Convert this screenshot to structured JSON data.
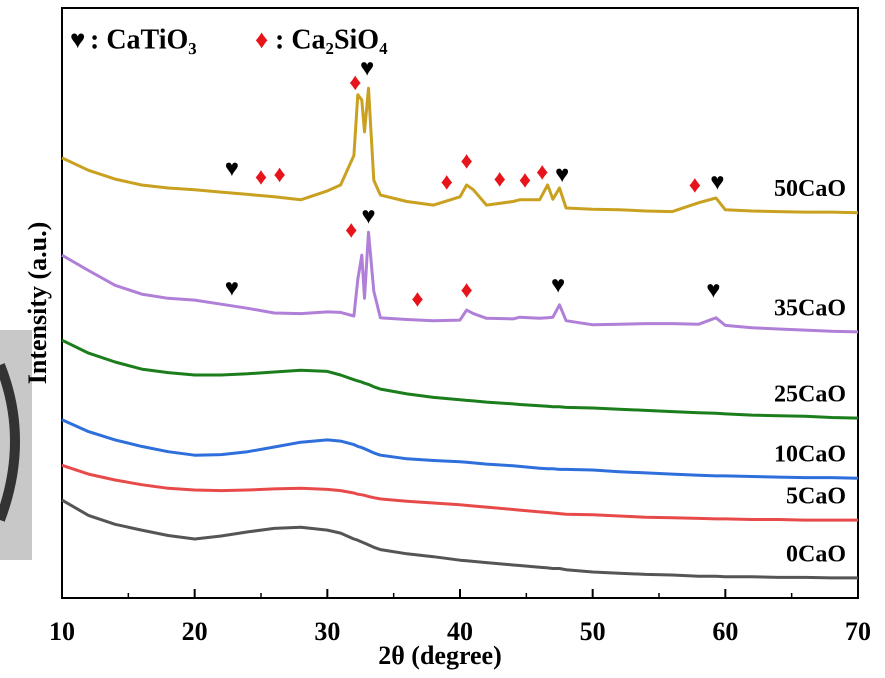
{
  "chart_data": {
    "type": "line",
    "xlabel": "2θ (degree)",
    "ylabel": "Intensity (a.u.)",
    "x": [
      10,
      12,
      14,
      16,
      18,
      20,
      22,
      24,
      26,
      28,
      30,
      31,
      32,
      32.3,
      32.6,
      32.8,
      33.1,
      33.5,
      34,
      36,
      38,
      40,
      40.5,
      41,
      42,
      44,
      44.5,
      46,
      46.6,
      47,
      47.5,
      48,
      50,
      52,
      54,
      56,
      58,
      59.3,
      60,
      62,
      64,
      66,
      68,
      70
    ],
    "xlim": [
      10,
      70
    ],
    "xticks": [
      10,
      20,
      30,
      40,
      50,
      60,
      70
    ],
    "ylim": [
      0,
      100
    ],
    "series": [
      {
        "name": "0CaO",
        "color": "#555555",
        "values": [
          16.6,
          14,
          12.5,
          11.5,
          10.6,
          10,
          10.5,
          11.2,
          11.8,
          12,
          11.5,
          11,
          10,
          9.8,
          9.5,
          9.3,
          9,
          8.6,
          8.2,
          7.5,
          7,
          6.4,
          6.3,
          6.2,
          6,
          5.6,
          5.5,
          5.2,
          5.1,
          5,
          5,
          4.8,
          4.4,
          4.2,
          4,
          3.9,
          3.7,
          3.7,
          3.6,
          3.6,
          3.5,
          3.5,
          3.4,
          3.4
        ]
      },
      {
        "name": "5CaO",
        "color": "#e84a4a",
        "values": [
          22.5,
          21,
          20,
          19.2,
          18.6,
          18.3,
          18.2,
          18.3,
          18.5,
          18.6,
          18.4,
          18.2,
          17.8,
          17.6,
          17.5,
          17.4,
          17.2,
          17,
          16.8,
          16.4,
          16.1,
          15.8,
          15.7,
          15.6,
          15.4,
          15,
          14.9,
          14.6,
          14.5,
          14.4,
          14.3,
          14.2,
          14.1,
          13.9,
          13.7,
          13.6,
          13.5,
          13.4,
          13.4,
          13.3,
          13.3,
          13.2,
          13.2,
          13.2
        ]
      },
      {
        "name": "10CaO",
        "color": "#2f6fdb",
        "values": [
          30.2,
          28.2,
          26.8,
          25.7,
          24.8,
          24.2,
          24.3,
          24.8,
          25.6,
          26.4,
          26.8,
          26.6,
          26,
          25.7,
          25.5,
          25.3,
          25,
          24.6,
          24.2,
          23.6,
          23.3,
          23.1,
          23,
          22.9,
          22.7,
          22.4,
          22.3,
          22,
          21.9,
          21.9,
          21.8,
          21.8,
          21.7,
          21.4,
          21.2,
          21,
          20.8,
          20.7,
          20.7,
          20.6,
          20.5,
          20.4,
          20.4,
          20.3
        ]
      },
      {
        "name": "25CaO",
        "color": "#1b7d1b",
        "values": [
          43.7,
          41.5,
          40,
          38.8,
          38.2,
          37.8,
          37.8,
          38,
          38.3,
          38.6,
          38.4,
          37.8,
          37,
          36.8,
          36.6,
          36.4,
          36.2,
          35.8,
          35.4,
          34.6,
          34,
          33.6,
          33.5,
          33.4,
          33.2,
          32.9,
          32.8,
          32.6,
          32.5,
          32.4,
          32.4,
          32.3,
          32.2,
          32,
          31.8,
          31.6,
          31.4,
          31.3,
          31.2,
          31,
          30.9,
          30.8,
          30.6,
          30.5
        ]
      },
      {
        "name": "35CaO",
        "color": "#b07fd8",
        "values": [
          58.1,
          55.5,
          53,
          51.5,
          50.8,
          50.5,
          49.8,
          49.1,
          48.3,
          48.2,
          48.5,
          48.4,
          47.8,
          54,
          58.1,
          50.8,
          62,
          52,
          47.5,
          47.2,
          47,
          47.1,
          48.8,
          48.2,
          47.4,
          47.3,
          47.6,
          47.4,
          47.5,
          47.6,
          49.7,
          47,
          46.3,
          46.4,
          46.5,
          46.5,
          46.4,
          47.5,
          46.2,
          45.8,
          45.6,
          45.4,
          45.2,
          45.1
        ]
      },
      {
        "name": "50CaO",
        "color": "#c9a020",
        "values": [
          74.6,
          72.5,
          71,
          70,
          69.5,
          69.2,
          68.8,
          68.4,
          68,
          67.5,
          69,
          70,
          75,
          85.3,
          84.4,
          79,
          86.4,
          70.8,
          68.3,
          67.2,
          66.6,
          68,
          70,
          69.2,
          66.6,
          67.2,
          67.5,
          67.5,
          70,
          67.6,
          69.5,
          66.1,
          65.9,
          65.8,
          65.6,
          65.5,
          67,
          67.8,
          65.8,
          65.6,
          65.5,
          65.4,
          65.4,
          65.3
        ]
      }
    ],
    "phases": [
      {
        "symbol": "♥",
        "name": ": CaTiO₃",
        "color": "#000000",
        "peaks": [
          {
            "x": 22.8,
            "y": 72.5
          },
          {
            "x": 33.0,
            "y": 89.5
          },
          {
            "x": 47.7,
            "y": 71.4
          },
          {
            "x": 59.4,
            "y": 70.2
          },
          {
            "x": 22.8,
            "y": 52.2
          },
          {
            "x": 33.1,
            "y": 64.4
          },
          {
            "x": 47.4,
            "y": 52.7
          },
          {
            "x": 59.1,
            "y": 51.9
          }
        ]
      },
      {
        "symbol": "♦",
        "name": ": Ca₂SiO₄",
        "color": "#e8141b",
        "peaks": [
          {
            "x": 32.1,
            "y": 87.0
          },
          {
            "x": 25.0,
            "y": 71.0
          },
          {
            "x": 26.4,
            "y": 71.4
          },
          {
            "x": 39.0,
            "y": 70.2
          },
          {
            "x": 40.5,
            "y": 73.7
          },
          {
            "x": 43.0,
            "y": 70.7
          },
          {
            "x": 44.9,
            "y": 70.5
          },
          {
            "x": 46.2,
            "y": 71.9
          },
          {
            "x": 57.7,
            "y": 69.7
          },
          {
            "x": 31.8,
            "y": 62.0
          },
          {
            "x": 36.8,
            "y": 50.3
          },
          {
            "x": 40.5,
            "y": 51.9
          }
        ]
      }
    ]
  }
}
